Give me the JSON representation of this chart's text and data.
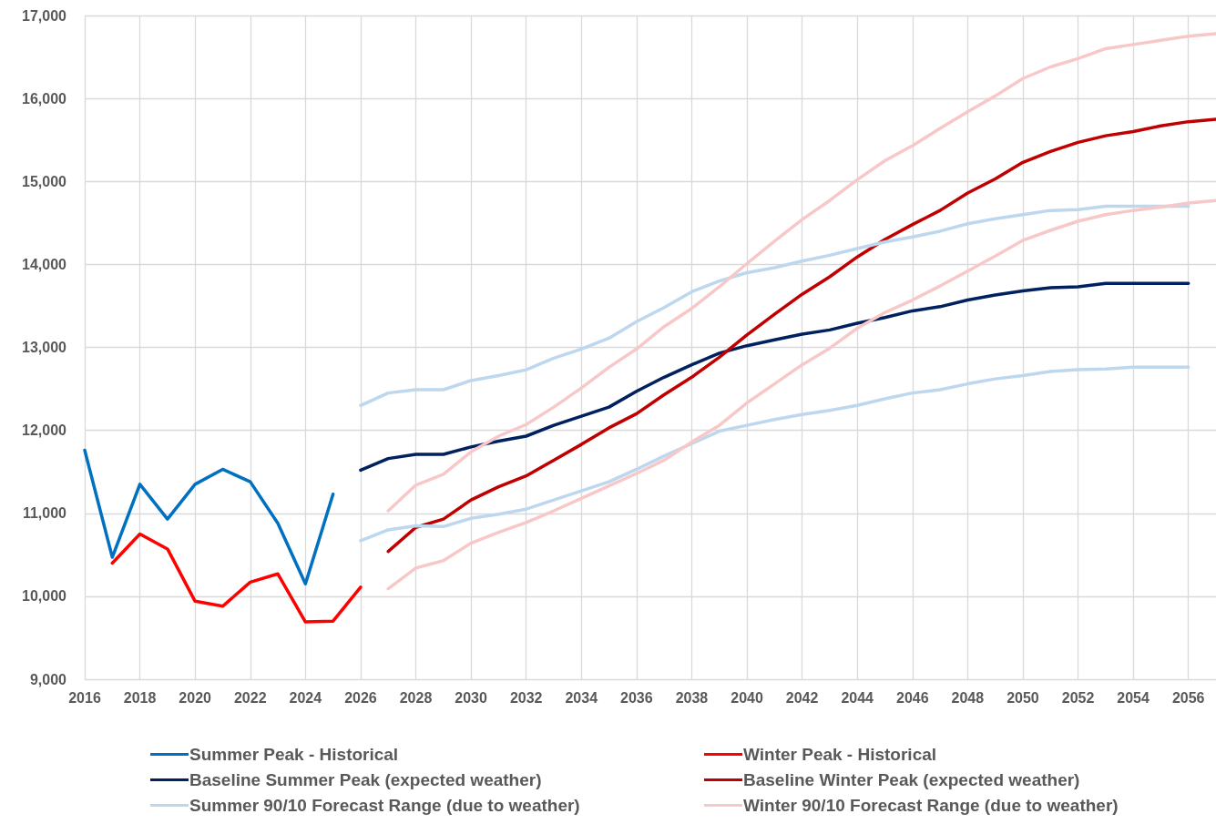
{
  "chart_data": {
    "type": "line",
    "xlim": [
      2016,
      2057
    ],
    "xticks": [
      2016,
      2018,
      2020,
      2022,
      2024,
      2026,
      2028,
      2030,
      2032,
      2034,
      2036,
      2038,
      2040,
      2042,
      2044,
      2046,
      2048,
      2050,
      2052,
      2054,
      2056
    ],
    "ylim": [
      9000,
      17000
    ],
    "yticks": [
      {
        "value": 9000,
        "label": "9,000"
      },
      {
        "value": 10000,
        "label": "10,000"
      },
      {
        "value": 11000,
        "label": "11,000"
      },
      {
        "value": 12000,
        "label": "12,000"
      },
      {
        "value": 13000,
        "label": "13,000"
      },
      {
        "value": 14000,
        "label": "14,000"
      },
      {
        "value": 15000,
        "label": "15,000"
      },
      {
        "value": 16000,
        "label": "16,000"
      },
      {
        "value": 17000,
        "label": "17,000"
      }
    ],
    "grid": true,
    "legend": "bottom",
    "marker": "none",
    "line_style": "solid",
    "series": [
      {
        "name": "Summer Peak - Historical",
        "color": "#0070c0",
        "x": [
          2016,
          2017,
          2018,
          2019,
          2020,
          2021,
          2022,
          2023,
          2024,
          2025
        ],
        "values": [
          11760,
          10470,
          11350,
          10930,
          11350,
          11530,
          11380,
          10880,
          10150,
          11230
        ]
      },
      {
        "name": "Winter Peak - Historical",
        "color": "#ff0000",
        "x": [
          2017,
          2018,
          2019,
          2020,
          2021,
          2022,
          2023,
          2024,
          2025,
          2026
        ],
        "values": [
          10400,
          10750,
          10570,
          9940,
          9880,
          10170,
          10270,
          9690,
          9700,
          10110
        ]
      },
      {
        "name": "Baseline Summer Peak (expected weather)",
        "color": "#002060",
        "x": [
          2026,
          2027,
          2028,
          2029,
          2030,
          2031,
          2032,
          2033,
          2034,
          2035,
          2036,
          2037,
          2038,
          2039,
          2040,
          2041,
          2042,
          2043,
          2044,
          2045,
          2046,
          2047,
          2048,
          2049,
          2050,
          2051,
          2052,
          2053,
          2054,
          2055,
          2056
        ],
        "values": [
          11520,
          11660,
          11710,
          11710,
          11800,
          11870,
          11930,
          12060,
          12170,
          12280,
          12470,
          12640,
          12790,
          12930,
          13020,
          13090,
          13160,
          13210,
          13290,
          13360,
          13440,
          13490,
          13570,
          13630,
          13680,
          13720,
          13730,
          13770,
          13770,
          13770,
          13770
        ]
      },
      {
        "name": "Baseline Winter Peak (expected weather)",
        "color": "#c00000",
        "x": [
          2027,
          2028,
          2029,
          2030,
          2031,
          2032,
          2033,
          2034,
          2035,
          2036,
          2037,
          2038,
          2039,
          2040,
          2041,
          2042,
          2043,
          2044,
          2045,
          2046,
          2047,
          2048,
          2049,
          2050,
          2051,
          2052,
          2053,
          2054,
          2055,
          2056,
          2057
        ],
        "values": [
          10540,
          10830,
          10930,
          11160,
          11320,
          11450,
          11640,
          11830,
          12030,
          12200,
          12430,
          12640,
          12880,
          13150,
          13400,
          13640,
          13850,
          14090,
          14300,
          14480,
          14650,
          14860,
          15030,
          15230,
          15360,
          15470,
          15550,
          15600,
          15670,
          15720,
          15750
        ]
      },
      {
        "name": "Summer 90/10 Forecast Range (due to weather)",
        "color": "#bdd7ee",
        "x": [
          2026,
          2027,
          2028,
          2029,
          2030,
          2031,
          2032,
          2033,
          2034,
          2035,
          2036,
          2037,
          2038,
          2039,
          2040,
          2041,
          2042,
          2043,
          2044,
          2045,
          2046,
          2047,
          2048,
          2049,
          2050,
          2051,
          2052,
          2053,
          2054,
          2055,
          2056
        ],
        "values": [
          12300,
          12450,
          12490,
          12490,
          12600,
          12660,
          12730,
          12870,
          12980,
          13110,
          13310,
          13480,
          13670,
          13800,
          13900,
          13960,
          14040,
          14110,
          14190,
          14270,
          14330,
          14400,
          14490,
          14550,
          14600,
          14650,
          14660,
          14700,
          14700,
          14700,
          14700
        ]
      },
      {
        "name": "Winter 90/10 Forecast Range (due to weather)",
        "color": "#f8c8c8",
        "x": [
          2027,
          2028,
          2029,
          2030,
          2031,
          2032,
          2033,
          2034,
          2035,
          2036,
          2037,
          2038,
          2039,
          2040,
          2041,
          2042,
          2043,
          2044,
          2045,
          2046,
          2047,
          2048,
          2049,
          2050,
          2051,
          2052,
          2053,
          2054,
          2055,
          2056,
          2057
        ],
        "values": [
          11030,
          11340,
          11470,
          11740,
          11930,
          12070,
          12280,
          12510,
          12760,
          12980,
          13250,
          13470,
          13730,
          14010,
          14280,
          14540,
          14770,
          15020,
          15250,
          15430,
          15640,
          15840,
          16030,
          16240,
          16380,
          16480,
          16600,
          16650,
          16700,
          16750,
          16780
        ]
      },
      {
        "color": "#bdd7ee",
        "x": [
          2026,
          2027,
          2028,
          2029,
          2030,
          2031,
          2032,
          2033,
          2034,
          2035,
          2036,
          2037,
          2038,
          2039,
          2040,
          2041,
          2042,
          2043,
          2044,
          2045,
          2046,
          2047,
          2048,
          2049,
          2050,
          2051,
          2052,
          2053,
          2054,
          2055,
          2056
        ],
        "values": [
          10670,
          10800,
          10850,
          10840,
          10940,
          10990,
          11050,
          11160,
          11270,
          11380,
          11530,
          11690,
          11840,
          11990,
          12060,
          12130,
          12190,
          12240,
          12300,
          12380,
          12450,
          12490,
          12560,
          12620,
          12660,
          12710,
          12730,
          12740,
          12760,
          12760,
          12760
        ]
      },
      {
        "color": "#f8c8c8",
        "x": [
          2027,
          2028,
          2029,
          2030,
          2031,
          2032,
          2033,
          2034,
          2035,
          2036,
          2037,
          2038,
          2039,
          2040,
          2041,
          2042,
          2043,
          2044,
          2045,
          2046,
          2047,
          2048,
          2049,
          2050,
          2051,
          2052,
          2053,
          2054,
          2055,
          2056,
          2057
        ],
        "values": [
          10090,
          10340,
          10430,
          10640,
          10770,
          10890,
          11030,
          11180,
          11330,
          11480,
          11640,
          11860,
          12060,
          12330,
          12560,
          12790,
          12990,
          13230,
          13420,
          13570,
          13740,
          13920,
          14100,
          14290,
          14410,
          14520,
          14600,
          14650,
          14690,
          14740,
          14770
        ]
      }
    ]
  }
}
